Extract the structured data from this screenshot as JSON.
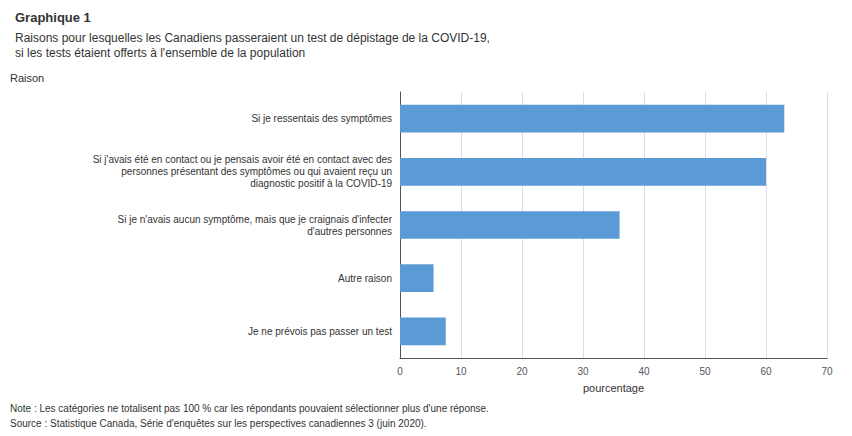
{
  "chart_data": {
    "type": "bar",
    "orientation": "horizontal",
    "title": "Graphique 1",
    "subtitle": "Raisons pour lesquelles les Canadiens passeraient un test de dépistage de la COVID-19,\nsi les tests étaient offerts à l'ensemble de la population",
    "ylabel": "Raison",
    "xlabel": "pourcentage",
    "categories": [
      "Je ne prévois pas passer un test",
      "Autre raison",
      "Si je n'avais aucun symptôme, mais que je craignais d'infecter\nd'autres personnes",
      "Si j'avais été en contact ou je pensais avoir été en contact avec des\npersonnes présentant des symptômes ou qui avaient reçu un\ndiagnostic positif à la COVID-19",
      "Si je ressentais des symptômes"
    ],
    "values": [
      7.5,
      5.5,
      36,
      60,
      63
    ],
    "color": "#5b9bd5",
    "xlim": [
      0,
      70
    ],
    "xticks": [
      0,
      10,
      20,
      30,
      40,
      50,
      60,
      70
    ],
    "grid": true,
    "annotations": [
      "Note : Les catégories ne totalisent pas 100 % car les répondants pouvaient sélectionner plus d'une réponse.",
      "Source : Statistique Canada, Série d'enquêtes sur les perspectives canadiennes 3 (juin 2020)."
    ]
  }
}
